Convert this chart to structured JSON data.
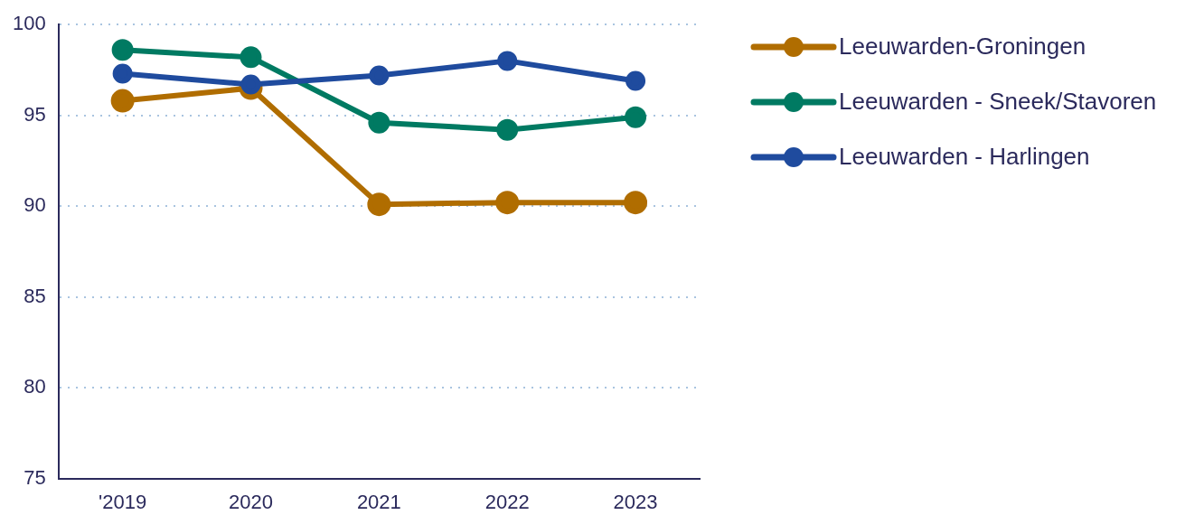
{
  "chart_data": {
    "type": "line",
    "categories": [
      "'2019",
      "2020",
      "2021",
      "2022",
      "2023"
    ],
    "series": [
      {
        "name": "Leeuwarden-Groningen",
        "color": "#b06d00",
        "values": [
          95.8,
          96.5,
          90.1,
          90.2,
          90.2
        ]
      },
      {
        "name": "Leeuwarden - Sneek/Stavoren",
        "color": "#007a62",
        "values": [
          98.6,
          98.2,
          94.6,
          94.2,
          94.9
        ]
      },
      {
        "name": "Leeuwarden - Harlingen",
        "color": "#1f4b9e",
        "values": [
          97.3,
          96.7,
          97.2,
          98.0,
          96.9
        ]
      }
    ],
    "ylim": [
      75,
      100
    ],
    "yticks": [
      75,
      80,
      85,
      90,
      95,
      100
    ],
    "grid": "y",
    "legend": "top right",
    "marker": "circle",
    "line_style": "solid"
  }
}
